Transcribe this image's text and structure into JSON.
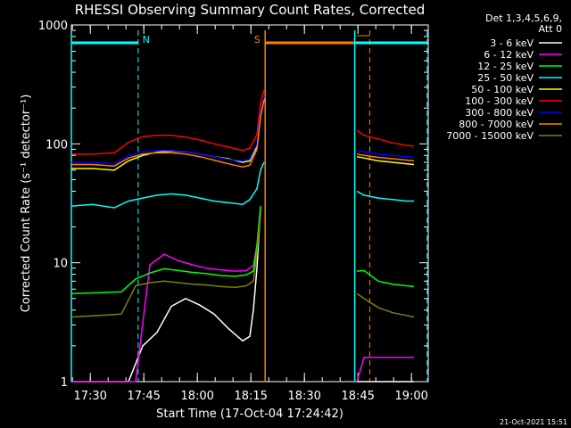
{
  "chart_data": {
    "type": "line",
    "title": "RHESSI Observing Summary Count Rates, Corrected",
    "xlabel": "Start Time (17-Oct-04 17:24:42)",
    "ylabel": "Corrected Count Rate (s⁻¹ detector⁻¹)",
    "x_unit": "minutes after 17:24:42",
    "xlim": [
      0,
      100
    ],
    "ylim": [
      1,
      1000
    ],
    "yscale": "log",
    "x_ticks": [
      {
        "label": "17:30",
        "value": 5.3
      },
      {
        "label": "17:45",
        "value": 20.3
      },
      {
        "label": "18:00",
        "value": 35.3
      },
      {
        "label": "18:15",
        "value": 50.3
      },
      {
        "label": "18:30",
        "value": 65.3
      },
      {
        "label": "18:45",
        "value": 80.3
      },
      {
        "label": "19:00",
        "value": 95.3
      }
    ],
    "y_ticks": [
      {
        "label": "1",
        "value": 1
      },
      {
        "label": "10",
        "value": 10
      },
      {
        "label": "100",
        "value": 100
      },
      {
        "label": "1000",
        "value": 1000
      }
    ],
    "legend_header": [
      "Det 1,3,4,5,6,9,",
      "Att 0"
    ],
    "legend_position": "right",
    "series": [
      {
        "name": "3 - 6 keV",
        "color": "#ffffff",
        "x": [
          0,
          8,
          16,
          20,
          24,
          28,
          32,
          36,
          40,
          44,
          48,
          50,
          51,
          52,
          53,
          80,
          84,
          88,
          92,
          96
        ],
        "y": [
          1,
          1,
          1,
          2,
          2.6,
          4.3,
          5,
          4.4,
          3.7,
          2.8,
          2.2,
          2.4,
          4,
          9,
          28,
          1,
          1,
          1,
          1,
          1
        ]
      },
      {
        "name": "6 - 12 keV",
        "color": "#ff00ff",
        "x": [
          0,
          8,
          14,
          18,
          22,
          26,
          30,
          34,
          38,
          42,
          46,
          49,
          51,
          52,
          53,
          80,
          82,
          86,
          90,
          94,
          96
        ],
        "y": [
          1,
          1,
          1,
          1,
          9.6,
          11.8,
          10.4,
          9.6,
          9.0,
          8.7,
          8.5,
          8.6,
          9.5,
          14,
          28,
          1,
          1.6,
          1.6,
          1.6,
          1.6,
          1.6
        ]
      },
      {
        "name": "12 - 25 keV",
        "color": "#00ff00",
        "x": [
          0,
          8,
          14,
          18,
          22,
          26,
          30,
          34,
          38,
          42,
          46,
          49,
          51,
          52,
          53,
          80,
          82,
          86,
          90,
          94,
          96
        ],
        "y": [
          5.5,
          5.6,
          5.7,
          7.3,
          8.2,
          8.9,
          8.6,
          8.3,
          8.1,
          7.8,
          7.7,
          7.9,
          8.5,
          14,
          30,
          8.5,
          8.6,
          7.0,
          6.6,
          6.4,
          6.3
        ]
      },
      {
        "name": "25 - 50 keV",
        "color": "#00ffff",
        "x": [
          0,
          6,
          12,
          16,
          20,
          24,
          28,
          32,
          36,
          40,
          44,
          48,
          50,
          52,
          53,
          54,
          80,
          82,
          86,
          90,
          94,
          96
        ],
        "y": [
          30,
          31,
          29,
          33,
          35,
          37,
          38,
          37,
          35,
          33,
          32,
          31,
          34,
          42,
          60,
          70,
          40,
          37,
          35,
          34,
          33,
          33
        ]
      },
      {
        "name": "50 - 100 keV",
        "color": "#ffff00",
        "x": [
          0,
          6,
          12,
          16,
          20,
          24,
          28,
          32,
          36,
          40,
          44,
          48,
          50,
          52,
          53,
          54,
          80,
          82,
          86,
          90,
          94,
          96
        ],
        "y": [
          62,
          62,
          60,
          72,
          80,
          85,
          87,
          86,
          82,
          78,
          75,
          70,
          72,
          95,
          170,
          240,
          78,
          76,
          72,
          70,
          68,
          67
        ]
      },
      {
        "name": "100 - 300 keV",
        "color": "#ff0000",
        "x": [
          0,
          6,
          12,
          16,
          20,
          24,
          28,
          32,
          36,
          40,
          44,
          48,
          50,
          52,
          53,
          54,
          80,
          82,
          86,
          90,
          94,
          96
        ],
        "y": [
          82,
          82,
          84,
          103,
          115,
          118,
          118,
          114,
          108,
          100,
          94,
          88,
          92,
          120,
          220,
          285,
          130,
          118,
          110,
          102,
          97,
          96
        ]
      },
      {
        "name": "300 - 800 keV",
        "color": "#0000ff",
        "x": [
          0,
          6,
          12,
          16,
          20,
          24,
          28,
          32,
          36,
          40,
          44,
          48,
          50,
          52,
          53,
          54,
          80,
          82,
          86,
          90,
          94,
          96
        ],
        "y": [
          70,
          70,
          68,
          80,
          86,
          88,
          88,
          86,
          82,
          78,
          74,
          72,
          75,
          100,
          185,
          250,
          88,
          86,
          82,
          80,
          78,
          77
        ]
      },
      {
        "name": "800 - 7000 keV",
        "color": "#ff7f00",
        "x": [
          0,
          6,
          12,
          16,
          20,
          24,
          28,
          32,
          36,
          40,
          44,
          48,
          50,
          52,
          53,
          54,
          80,
          82,
          86,
          90,
          94,
          96
        ],
        "y": [
          67,
          67,
          65,
          76,
          82,
          84,
          84,
          82,
          78,
          73,
          68,
          64,
          66,
          90,
          170,
          235,
          82,
          80,
          77,
          75,
          73,
          72
        ]
      },
      {
        "name": "7000 - 15000 keV",
        "color": "#808000",
        "x": [
          0,
          8,
          14,
          18,
          22,
          26,
          30,
          34,
          38,
          42,
          46,
          49,
          51,
          52,
          53,
          80,
          82,
          86,
          90,
          94,
          96
        ],
        "y": [
          3.5,
          3.6,
          3.7,
          6.4,
          6.8,
          7.0,
          6.8,
          6.6,
          6.5,
          6.3,
          6.2,
          6.4,
          7.0,
          12,
          25,
          5.5,
          5.0,
          4.2,
          3.8,
          3.6,
          3.5
        ]
      }
    ],
    "annotations": [
      {
        "label": "N",
        "kind": "night",
        "color": "#00ffff",
        "x_start": 0,
        "x_end": 18.7
      },
      {
        "label": "S",
        "kind": "saa",
        "color": "#ff7f00",
        "x_start": 54.3,
        "x_end": 83.6
      },
      {
        "label": "",
        "kind": "night",
        "color": "#00ffff",
        "x_start": 79.4,
        "x_end": 99.7
      }
    ]
  },
  "footer": {
    "timestamp": "21-Oct-2021 15:51"
  }
}
